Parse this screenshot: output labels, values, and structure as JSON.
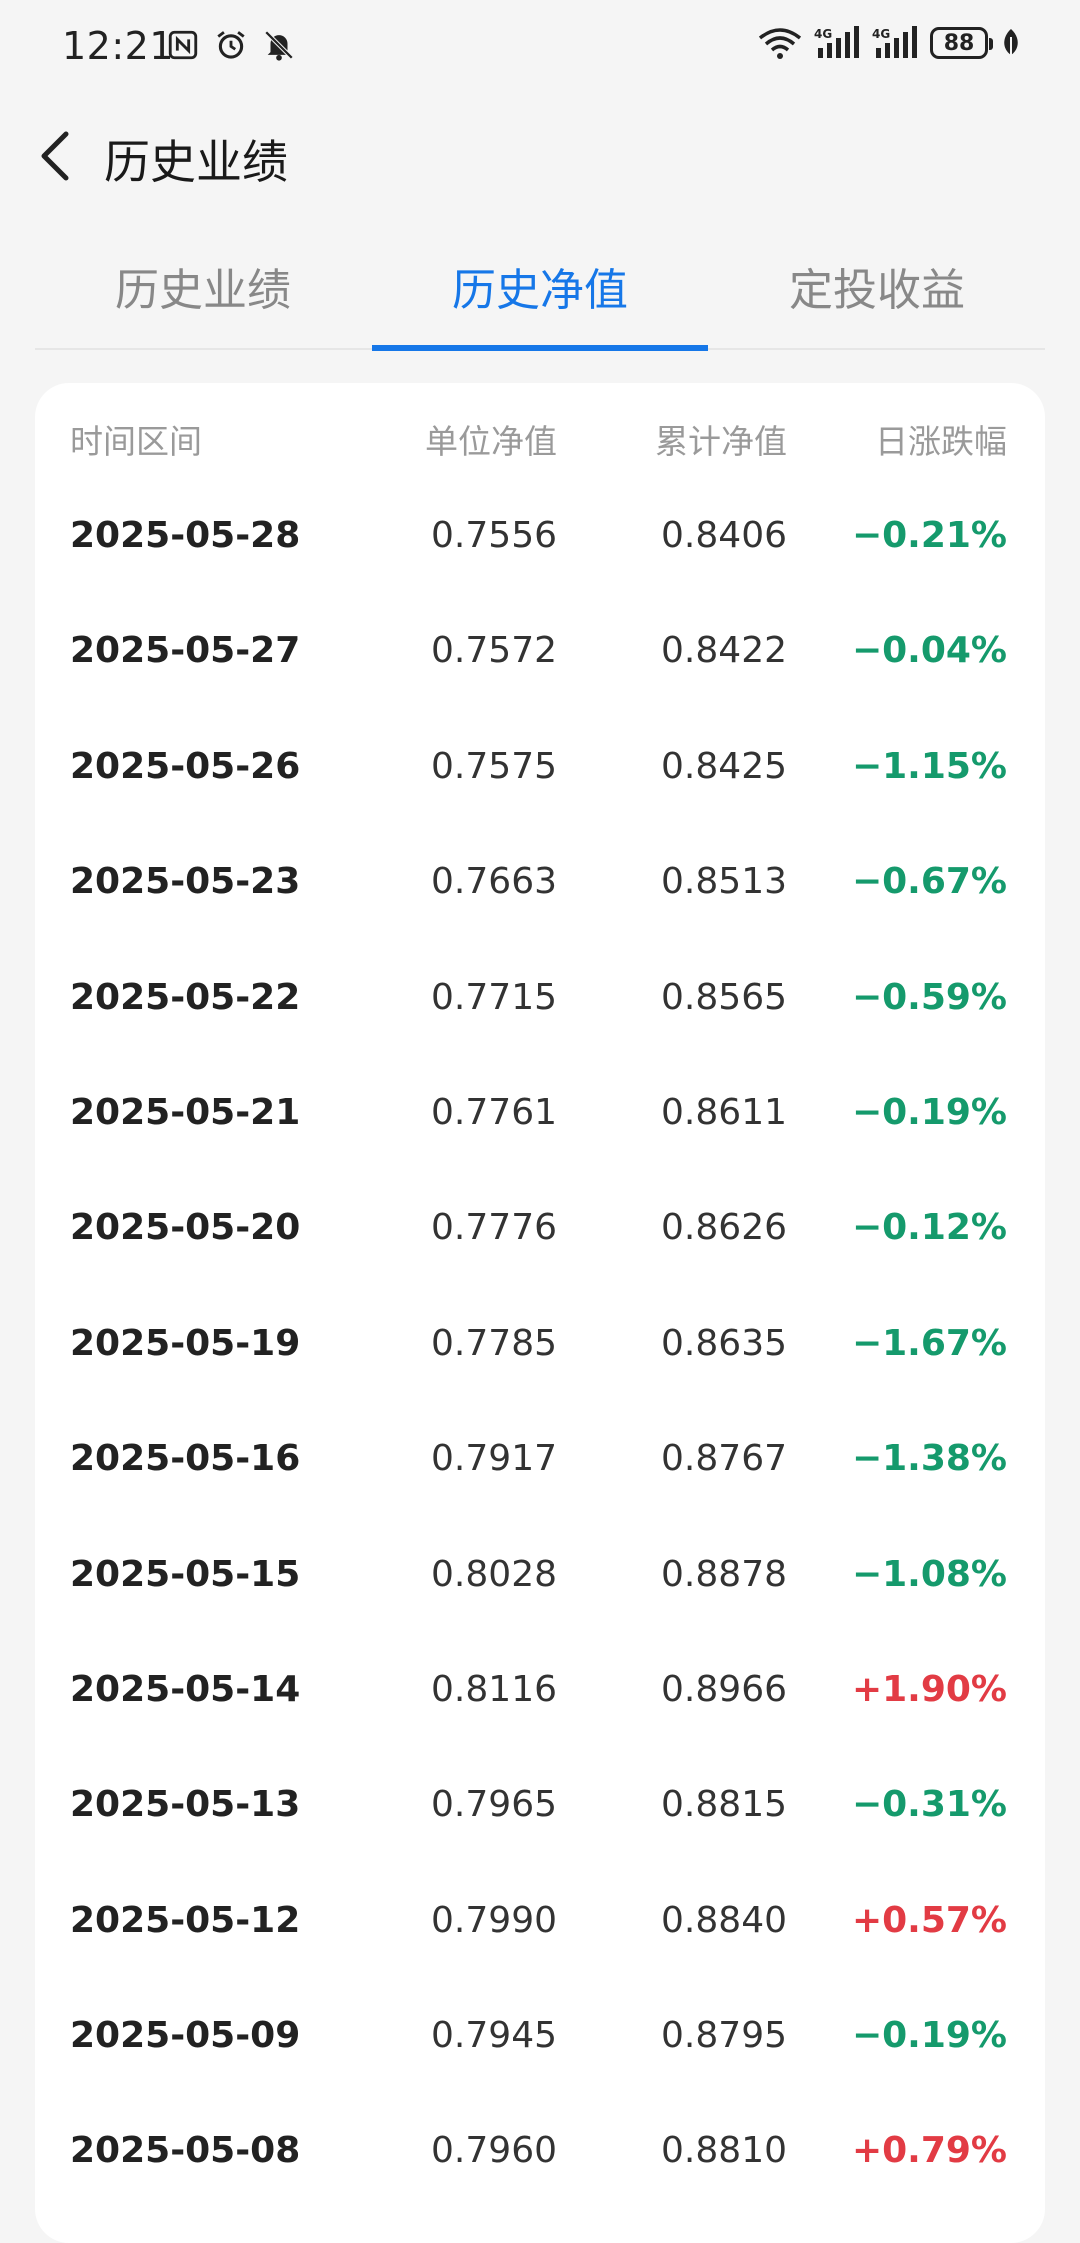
{
  "status_bar": {
    "time": "12:21",
    "battery": "88",
    "network1": "4G",
    "network2": "4G"
  },
  "header": {
    "title": "历史业绩"
  },
  "tabs": [
    {
      "label": "历史业绩",
      "active": false
    },
    {
      "label": "历史净值",
      "active": true
    },
    {
      "label": "定投收益",
      "active": false
    }
  ],
  "table": {
    "headers": {
      "date": "时间区间",
      "unit_nav": "单位净值",
      "acc_nav": "累计净值",
      "daily_change": "日涨跌幅"
    },
    "rows": [
      {
        "date": "2025-05-28",
        "unit_nav": "0.7556",
        "acc_nav": "0.8406",
        "change": "−0.21%",
        "dir": "down"
      },
      {
        "date": "2025-05-27",
        "unit_nav": "0.7572",
        "acc_nav": "0.8422",
        "change": "−0.04%",
        "dir": "down"
      },
      {
        "date": "2025-05-26",
        "unit_nav": "0.7575",
        "acc_nav": "0.8425",
        "change": "−1.15%",
        "dir": "down"
      },
      {
        "date": "2025-05-23",
        "unit_nav": "0.7663",
        "acc_nav": "0.8513",
        "change": "−0.67%",
        "dir": "down"
      },
      {
        "date": "2025-05-22",
        "unit_nav": "0.7715",
        "acc_nav": "0.8565",
        "change": "−0.59%",
        "dir": "down"
      },
      {
        "date": "2025-05-21",
        "unit_nav": "0.7761",
        "acc_nav": "0.8611",
        "change": "−0.19%",
        "dir": "down"
      },
      {
        "date": "2025-05-20",
        "unit_nav": "0.7776",
        "acc_nav": "0.8626",
        "change": "−0.12%",
        "dir": "down"
      },
      {
        "date": "2025-05-19",
        "unit_nav": "0.7785",
        "acc_nav": "0.8635",
        "change": "−1.67%",
        "dir": "down"
      },
      {
        "date": "2025-05-16",
        "unit_nav": "0.7917",
        "acc_nav": "0.8767",
        "change": "−1.38%",
        "dir": "down"
      },
      {
        "date": "2025-05-15",
        "unit_nav": "0.8028",
        "acc_nav": "0.8878",
        "change": "−1.08%",
        "dir": "down"
      },
      {
        "date": "2025-05-14",
        "unit_nav": "0.8116",
        "acc_nav": "0.8966",
        "change": "+1.90%",
        "dir": "up"
      },
      {
        "date": "2025-05-13",
        "unit_nav": "0.7965",
        "acc_nav": "0.8815",
        "change": "−0.31%",
        "dir": "down"
      },
      {
        "date": "2025-05-12",
        "unit_nav": "0.7990",
        "acc_nav": "0.8840",
        "change": "+0.57%",
        "dir": "up"
      },
      {
        "date": "2025-05-09",
        "unit_nav": "0.7945",
        "acc_nav": "0.8795",
        "change": "−0.19%",
        "dir": "down"
      },
      {
        "date": "2025-05-08",
        "unit_nav": "0.7960",
        "acc_nav": "0.8810",
        "change": "+0.79%",
        "dir": "up"
      }
    ]
  },
  "colors": {
    "accent": "#1677e8",
    "down": "#159a6c",
    "up": "#e23b44"
  },
  "icons": [
    "nfc-icon",
    "alarm-icon",
    "bell-muted-icon",
    "wifi-icon",
    "signal-icon",
    "battery-icon",
    "leaf-icon",
    "back-arrow-icon"
  ]
}
